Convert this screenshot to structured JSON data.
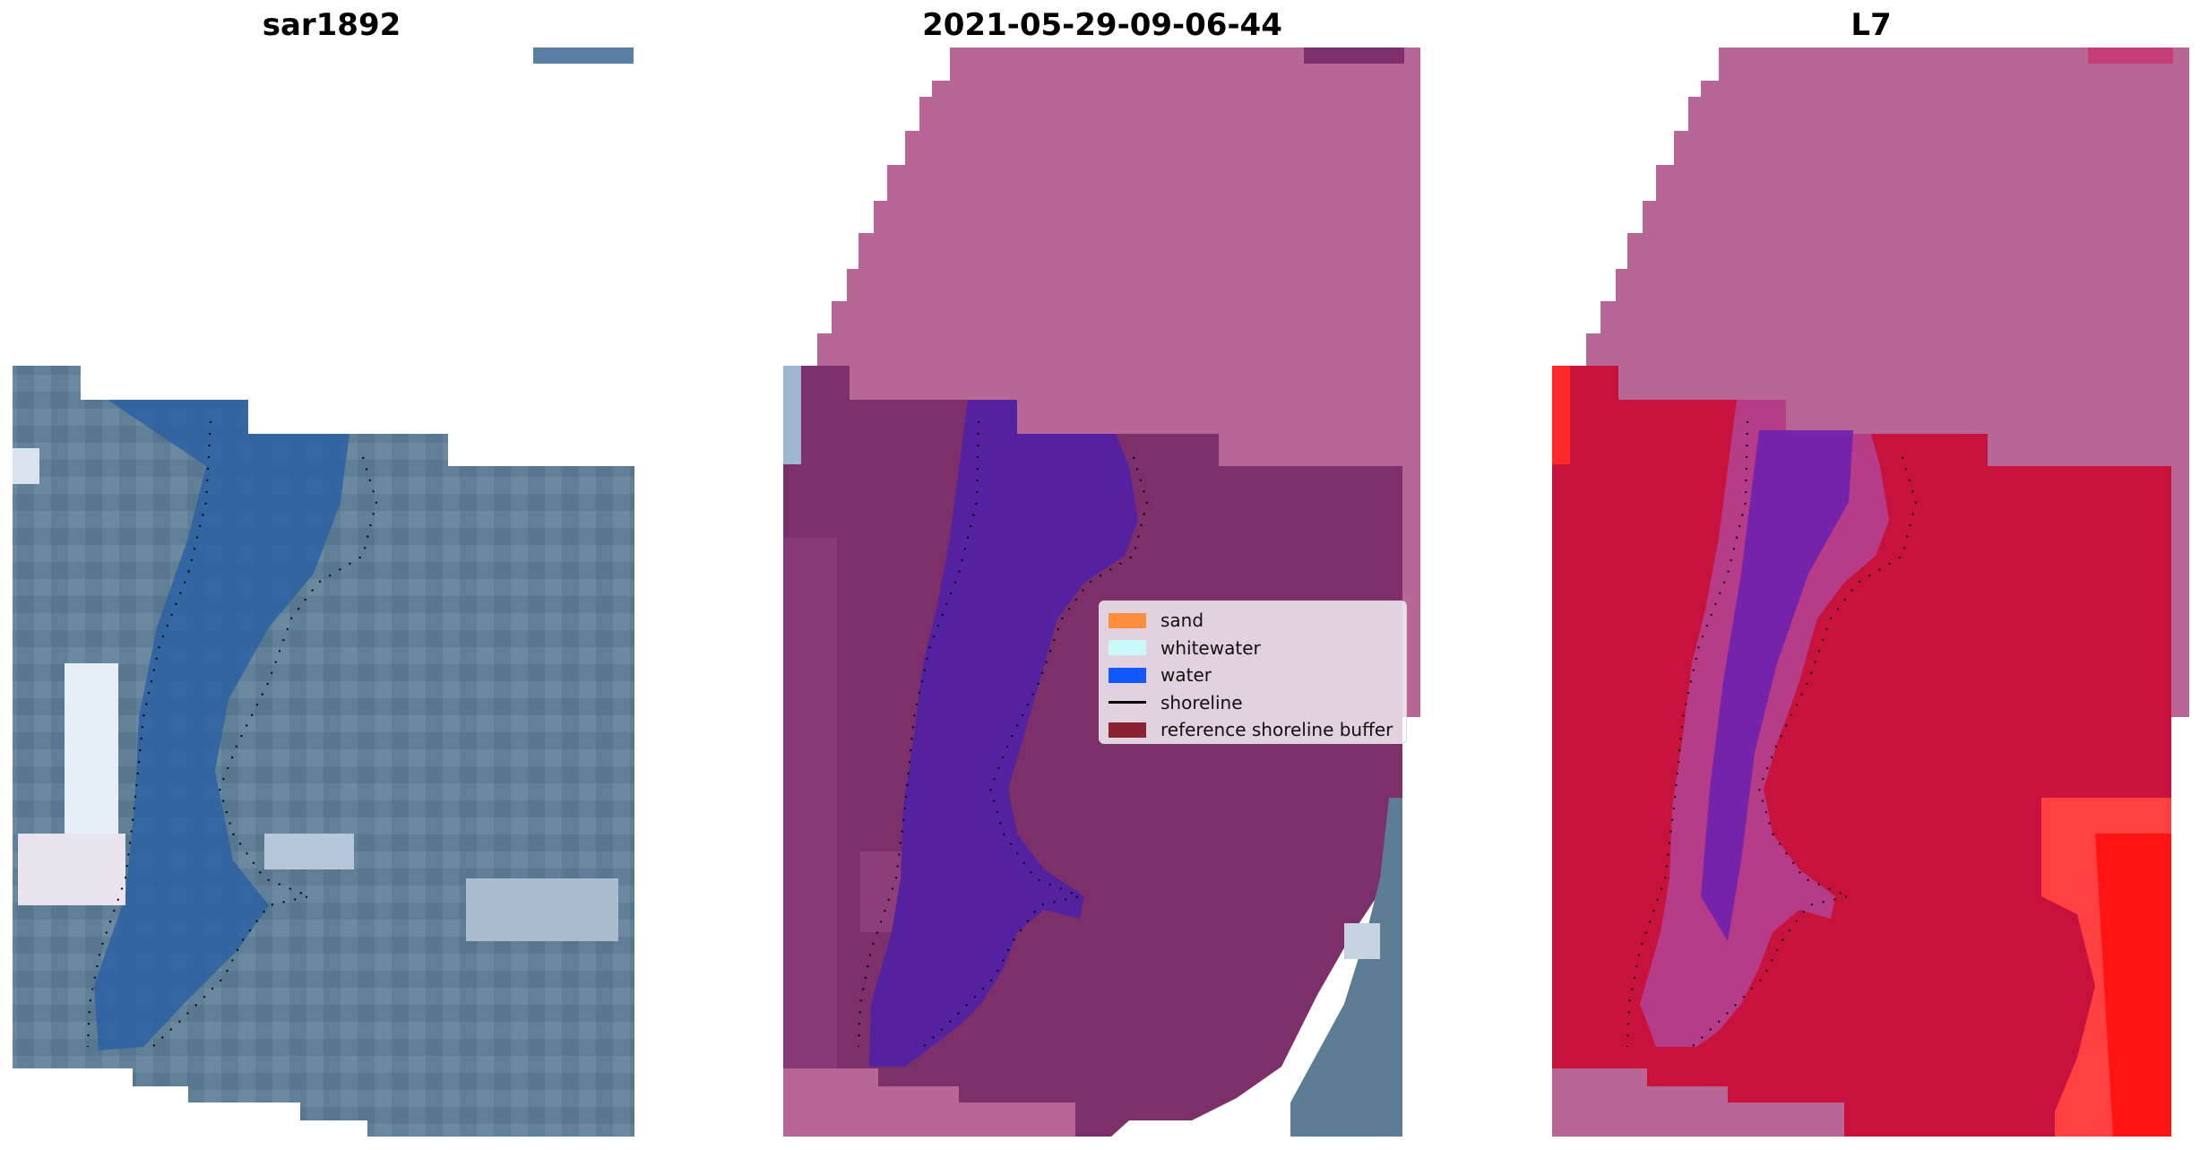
{
  "panels": [
    {
      "title": "sar1892"
    },
    {
      "title": "2021-05-29-09-06-44"
    },
    {
      "title": "L7"
    }
  ],
  "legend": {
    "items": [
      {
        "label": "sand",
        "color": "#ff8f3f"
      },
      {
        "label": "whitewater",
        "color": "#c8fafa"
      },
      {
        "label": "water",
        "color": "#1258ff"
      },
      {
        "label": "shoreline",
        "color": "#000000"
      },
      {
        "label": "reference shoreline buffer",
        "color": "#8b2232"
      }
    ]
  },
  "colors": {
    "sar_base": "#5d7d94",
    "sar_water": "#2f66a2",
    "buffer_pink": "#b86696",
    "class_purple": "#7c2f68",
    "class_water": "#5422a0",
    "l7_red": "#c8123e",
    "l7_water": "#6a1eb0",
    "l7_bright": "#ff2020"
  }
}
